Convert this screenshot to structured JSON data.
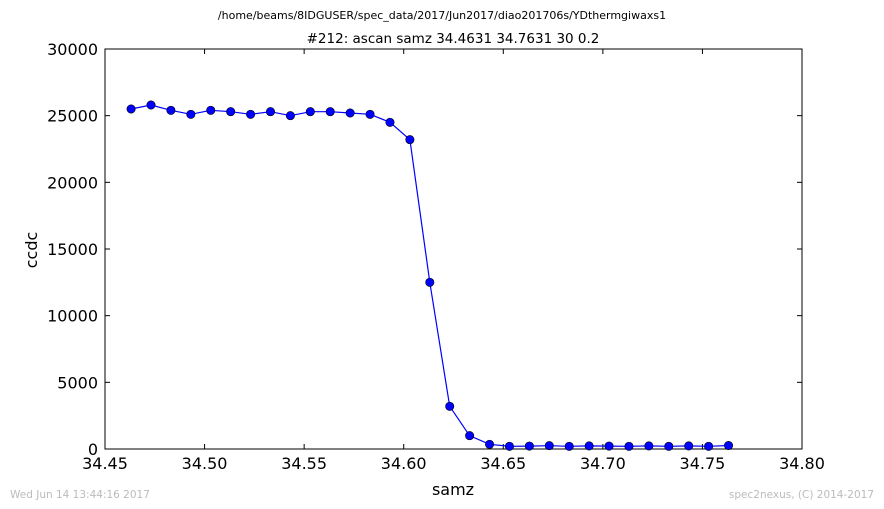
{
  "figure": {
    "path_title": "/home/beams/8IDGUSER/spec_data/2017/Jun2017/diao201706s/YDthermgiwaxs1",
    "footer_left": "Wed Jun 14 13:44:16 2017",
    "footer_right": "spec2nexus, (C) 2014-2017"
  },
  "colors": {
    "series": "#0000ff",
    "axes": "#000000",
    "footer": "#bbbbbb"
  },
  "chart_data": {
    "type": "line",
    "markers": "circle",
    "title": "#212: ascan  samz 34.4631 34.7631  30 0.2",
    "xlabel": "samz",
    "ylabel": "ccdc",
    "xlim": [
      34.45,
      34.8
    ],
    "ylim": [
      0,
      30000
    ],
    "xticks": [
      34.45,
      34.5,
      34.55,
      34.6,
      34.65,
      34.7,
      34.75,
      34.8
    ],
    "xtick_labels": [
      "34.45",
      "34.50",
      "34.55",
      "34.60",
      "34.65",
      "34.70",
      "34.75",
      "34.80"
    ],
    "yticks": [
      0,
      5000,
      10000,
      15000,
      20000,
      25000,
      30000
    ],
    "ytick_labels": [
      "0",
      "5000",
      "10000",
      "15000",
      "20000",
      "25000",
      "30000"
    ],
    "grid": false,
    "series": [
      {
        "x": [
          34.4631,
          34.4731,
          34.4831,
          34.4931,
          34.5031,
          34.5131,
          34.5231,
          34.5331,
          34.5431,
          34.5531,
          34.5631,
          34.5731,
          34.5831,
          34.5931,
          34.6031,
          34.6131,
          34.6231,
          34.6331,
          34.6431,
          34.6531,
          34.6631,
          34.6731,
          34.6831,
          34.6931,
          34.7031,
          34.7131,
          34.7231,
          34.7331,
          34.7431,
          34.7531,
          34.7631
        ],
        "y": [
          25500,
          25800,
          25400,
          25100,
          25400,
          25300,
          25100,
          25300,
          25000,
          25300,
          25300,
          25200,
          25100,
          24500,
          23200,
          12500,
          3200,
          1000,
          350,
          200,
          220,
          250,
          200,
          230,
          220,
          200,
          230,
          200,
          230,
          200,
          260
        ]
      }
    ]
  }
}
